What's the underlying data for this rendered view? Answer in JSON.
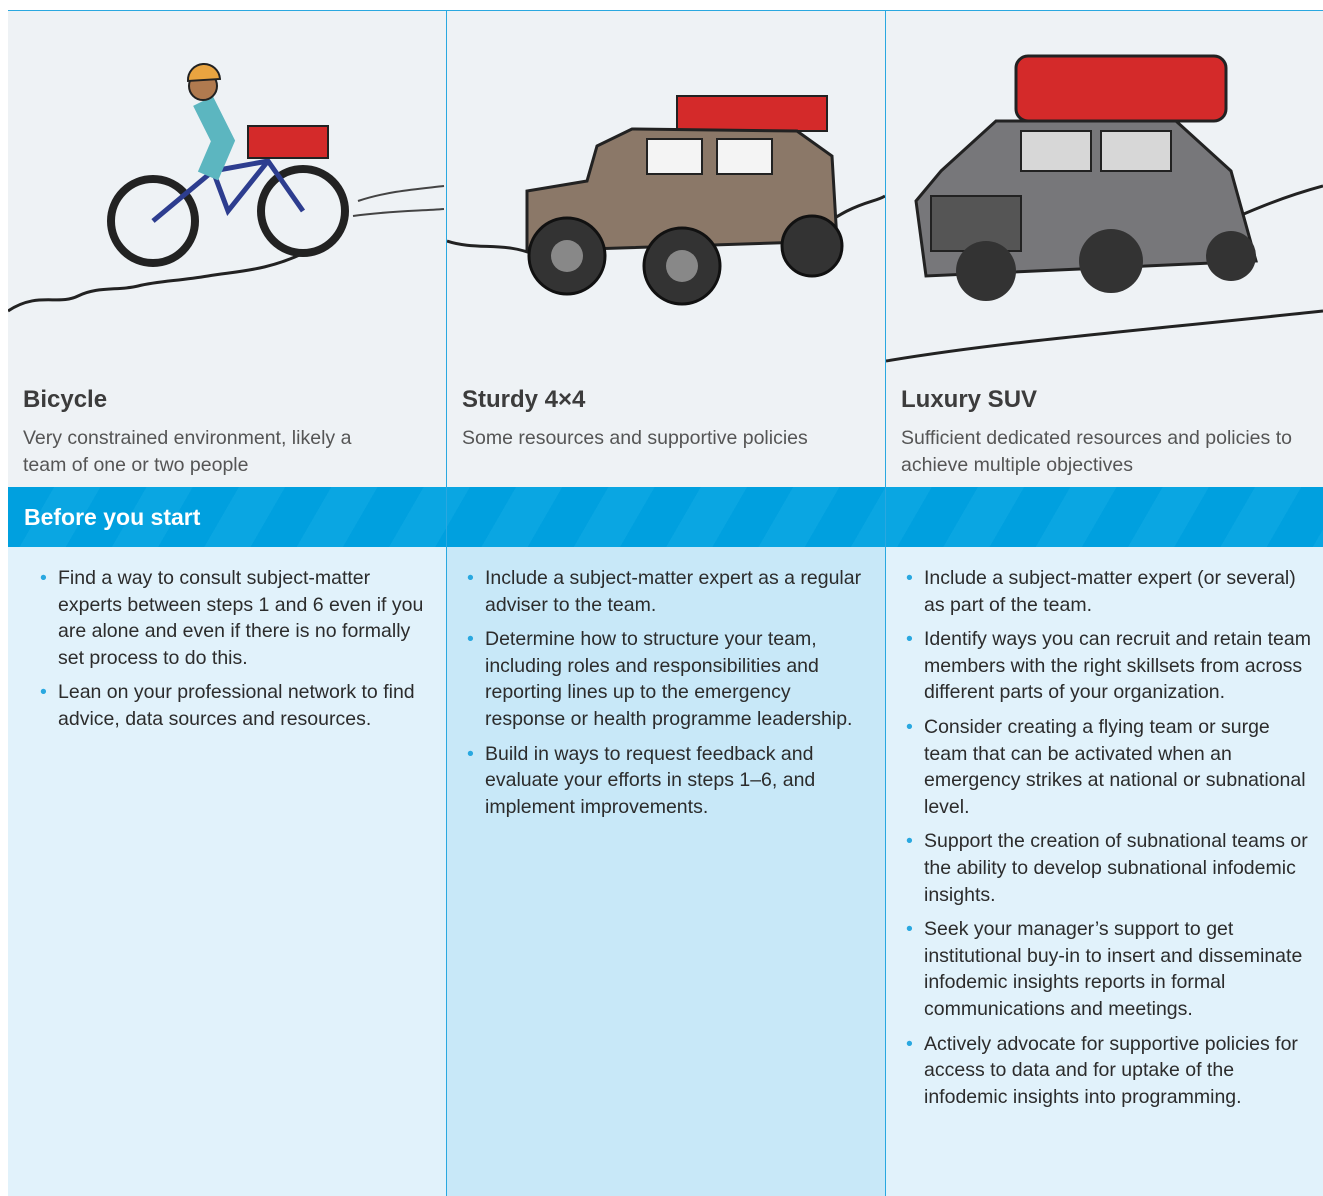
{
  "columns": [
    {
      "title": "Bicycle",
      "description": "Very constrained environment, likely a team of one or two people",
      "items": [
        "Find a way to consult subject-matter experts between steps 1 and 6 even if you are alone and even if there is no formally set process to do this.",
        "Lean on your professional network to find advice, data sources and resources."
      ]
    },
    {
      "title": "Sturdy 4×4",
      "description": "Some resources and supportive policies",
      "items": [
        "Include a subject-matter expert as a regular adviser to the team.",
        "Determine how to structure your team, including roles and responsibilities and reporting lines up to the emergency response or health programme leadership.",
        "Build in ways to request feedback and evaluate your efforts in steps 1–6, and implement improvements."
      ]
    },
    {
      "title": "Luxury SUV",
      "description": "Sufficient dedicated resources and policies to achieve multiple objectives",
      "items": [
        "Include a subject-matter expert (or several) as part of the team.",
        "Identify ways you can recruit and retain team members with the right skillsets from across different parts of your organization.",
        "Consider creating a flying team or surge team that can be activated when an emergency strikes at national or subnational level.",
        "Support the creation of subnational teams or the ability to develop subnational infodemic insights.",
        "Seek your manager’s support to get institutional buy-in to insert and disseminate infodemic insights reports in formal communications and meetings.",
        "Actively advocate for supportive policies for access to data and for uptake of the infodemic insights into programming."
      ]
    }
  ],
  "section": {
    "title": "Before you start"
  }
}
